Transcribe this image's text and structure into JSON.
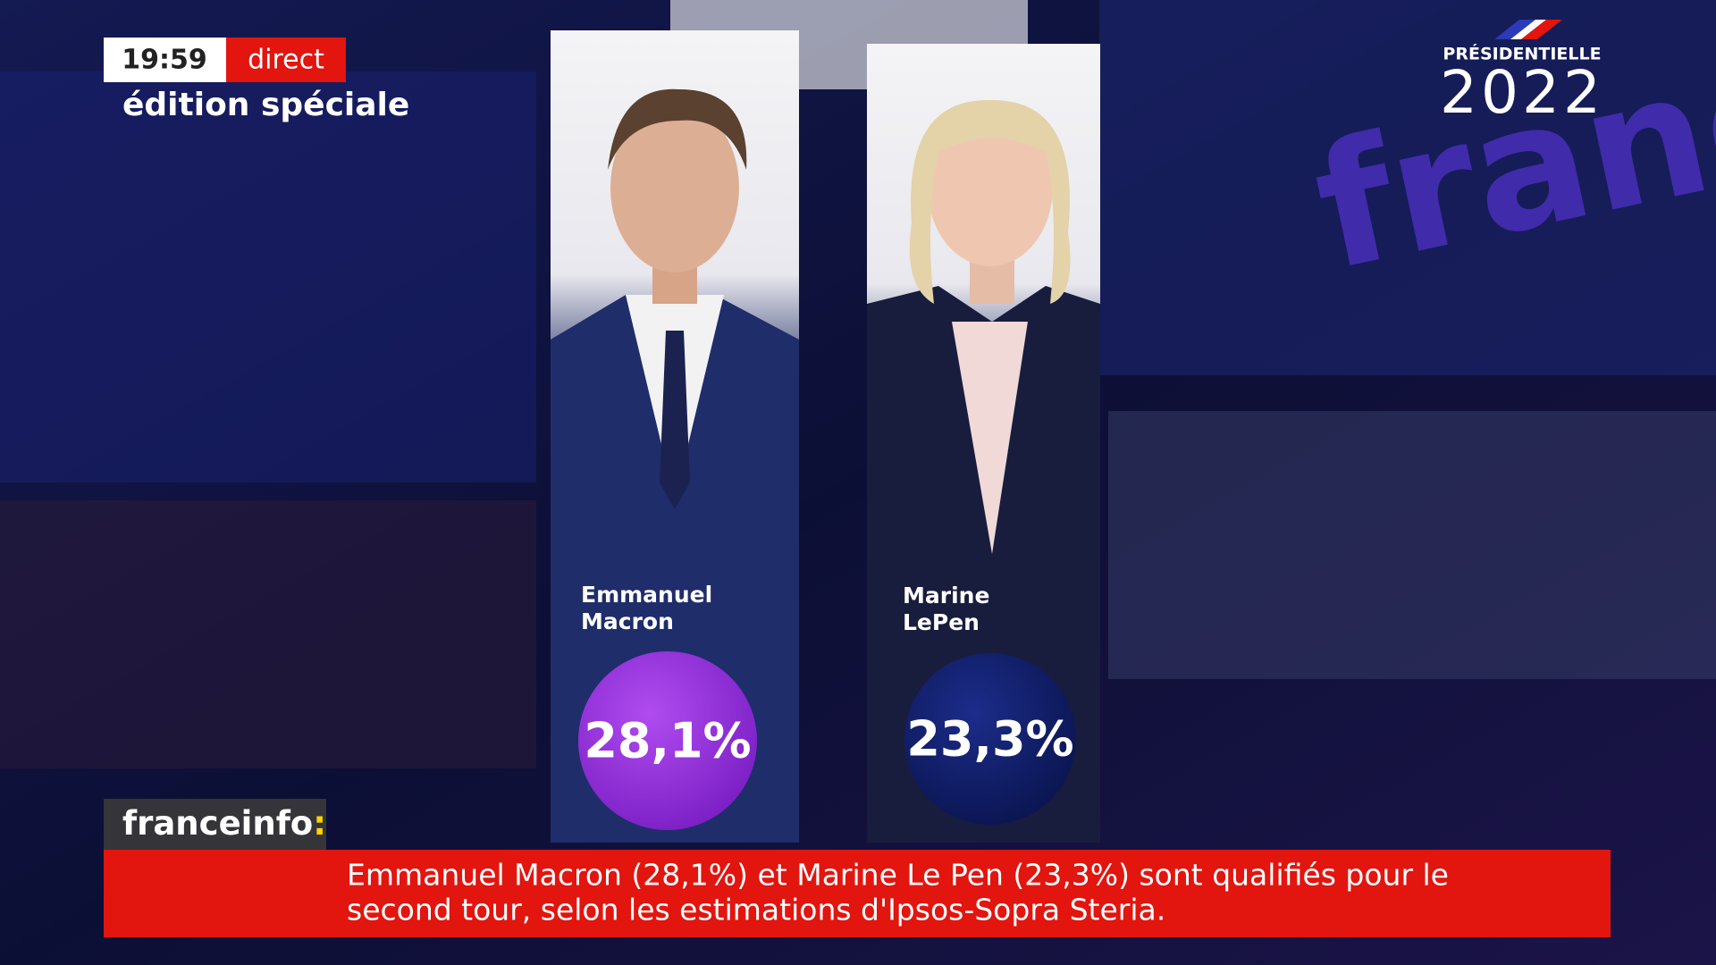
{
  "header": {
    "time": "19:59",
    "live": "direct",
    "program": "édition spéciale"
  },
  "logo": {
    "label": "PRÉSIDENTIELLE",
    "year": "2022"
  },
  "backdrop": "franc",
  "candidates": [
    {
      "first_name": "Emmanuel",
      "last_name": "Macron",
      "result": "28,1%"
    },
    {
      "first_name": "Marine",
      "last_name": "LePen",
      "result": "23,3%"
    }
  ],
  "channel": {
    "name": "franceinfo",
    "mark": ":"
  },
  "ticker": {
    "lines": [
      "Emmanuel Macron (28,1%) et Marine Le Pen (23,3%) sont qualifiés pour le",
      "second tour, selon les estimations d'Ipsos-Sopra Steria."
    ]
  }
}
